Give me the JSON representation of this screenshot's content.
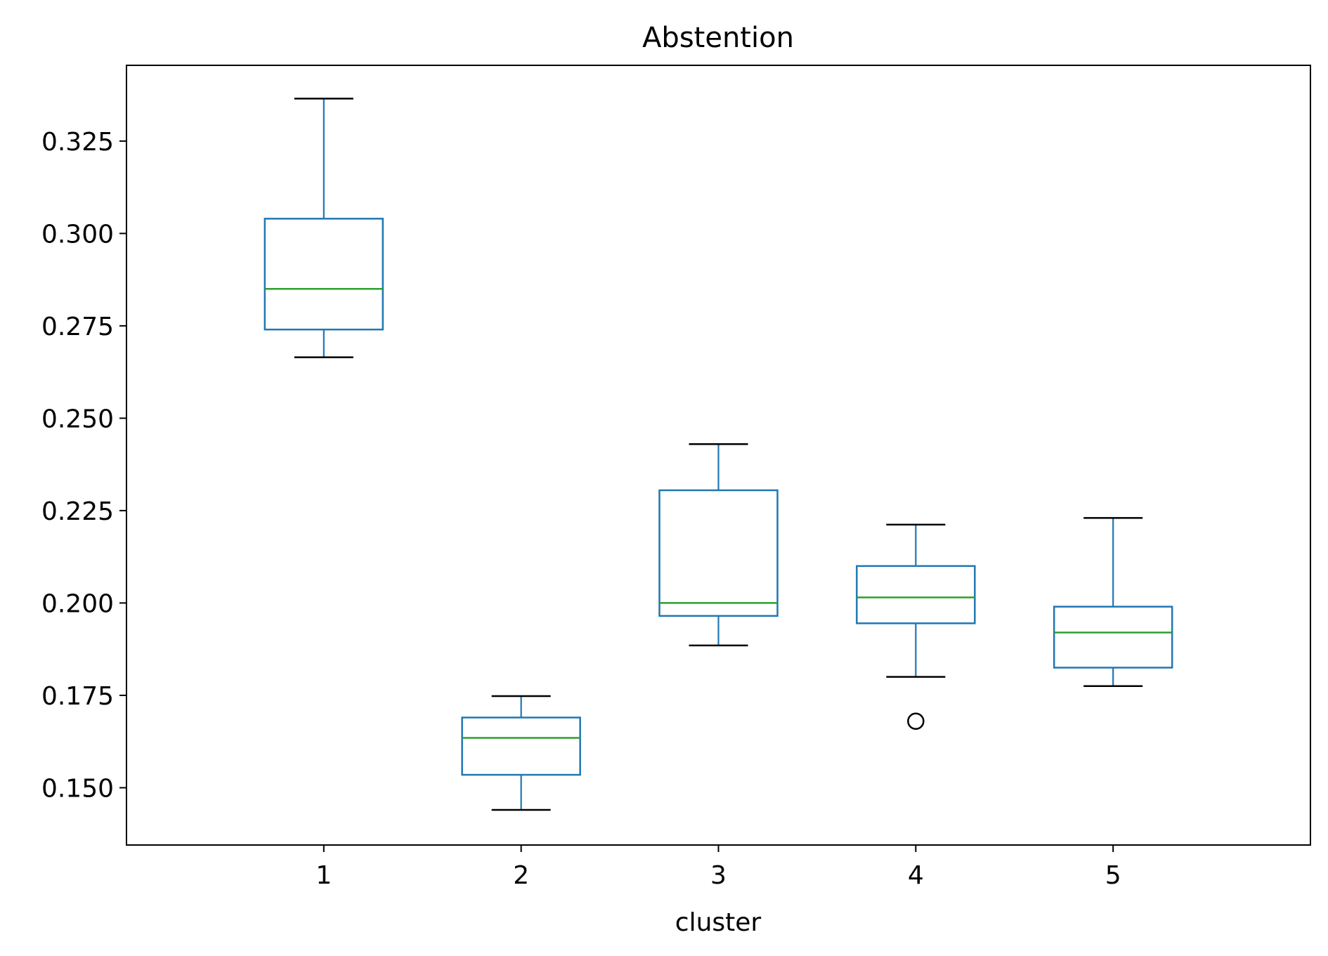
{
  "chart_data": {
    "type": "box",
    "title": "Abstention",
    "xlabel": "cluster",
    "ylabel": "",
    "ylim": [
      0.1345,
      0.3455
    ],
    "y_ticks": [
      0.15,
      0.175,
      0.2,
      0.225,
      0.25,
      0.275,
      0.3,
      0.325
    ],
    "y_tick_labels": [
      "0.150",
      "0.175",
      "0.200",
      "0.225",
      "0.250",
      "0.275",
      "0.300",
      "0.325"
    ],
    "categories": [
      "1",
      "2",
      "3",
      "4",
      "5"
    ],
    "boxes": [
      {
        "category": "1",
        "whisker_low": 0.2665,
        "q1": 0.274,
        "median": 0.285,
        "q3": 0.304,
        "whisker_high": 0.3365,
        "outliers": []
      },
      {
        "category": "2",
        "whisker_low": 0.144,
        "q1": 0.1535,
        "median": 0.1635,
        "q3": 0.169,
        "whisker_high": 0.1748,
        "outliers": []
      },
      {
        "category": "3",
        "whisker_low": 0.1885,
        "q1": 0.1965,
        "median": 0.2,
        "q3": 0.2305,
        "whisker_high": 0.243,
        "outliers": []
      },
      {
        "category": "4",
        "whisker_low": 0.18,
        "q1": 0.1945,
        "median": 0.2015,
        "q3": 0.21,
        "whisker_high": 0.2212,
        "outliers": [
          0.168
        ]
      },
      {
        "category": "5",
        "whisker_low": 0.1775,
        "q1": 0.1825,
        "median": 0.192,
        "q3": 0.199,
        "whisker_high": 0.223,
        "outliers": []
      }
    ],
    "grid": false,
    "colors": {
      "box": "#1f77b4",
      "median": "#2ca02c",
      "caps": "#000000",
      "outliers": "#000000"
    }
  }
}
